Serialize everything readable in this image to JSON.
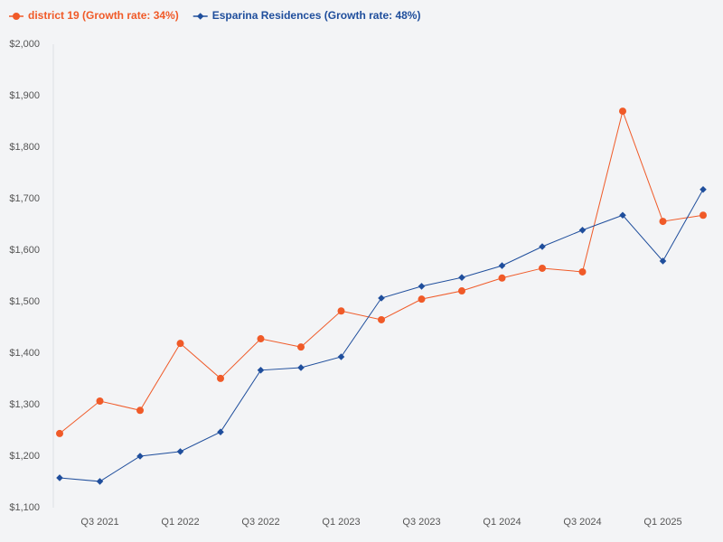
{
  "chart_data": {
    "type": "line",
    "categories": [
      null,
      "Q3 2021",
      null,
      "Q1 2022",
      null,
      "Q3 2022",
      null,
      "Q1 2023",
      null,
      "Q3 2023",
      null,
      "Q1 2024",
      null,
      "Q3 2024",
      null,
      "Q1 2025",
      null
    ],
    "series": [
      {
        "name": "district 19 (Growth rate: 34%)",
        "color": "#f05a28",
        "marker": "circle",
        "values": [
          1244,
          1307,
          1289,
          1419,
          1351,
          1428,
          1412,
          1482,
          1465,
          1505,
          1521,
          1546,
          1565,
          1558,
          1870,
          1656,
          1668
        ]
      },
      {
        "name": "Esparina Residences (Growth rate: 48%)",
        "color": "#1f4e9c",
        "marker": "diamond",
        "values": [
          1158,
          1151,
          1200,
          1209,
          1247,
          1367,
          1372,
          1393,
          1507,
          1530,
          1547,
          1570,
          1607,
          1639,
          1668,
          1579,
          1718
        ]
      }
    ],
    "ylim": [
      1100,
      2000
    ],
    "yticks": [
      {
        "value": 1100,
        "label": "$1,100"
      },
      {
        "value": 1200,
        "label": "$1,200"
      },
      {
        "value": 1300,
        "label": "$1,300"
      },
      {
        "value": 1400,
        "label": "$1,400"
      },
      {
        "value": 1500,
        "label": "$1,500"
      },
      {
        "value": 1600,
        "label": "$1,600"
      },
      {
        "value": 1700,
        "label": "$1,700"
      },
      {
        "value": 1800,
        "label": "$1,800"
      },
      {
        "value": 1900,
        "label": "$1,900"
      },
      {
        "value": 2000,
        "label": "$2,000"
      }
    ],
    "grid": false
  }
}
